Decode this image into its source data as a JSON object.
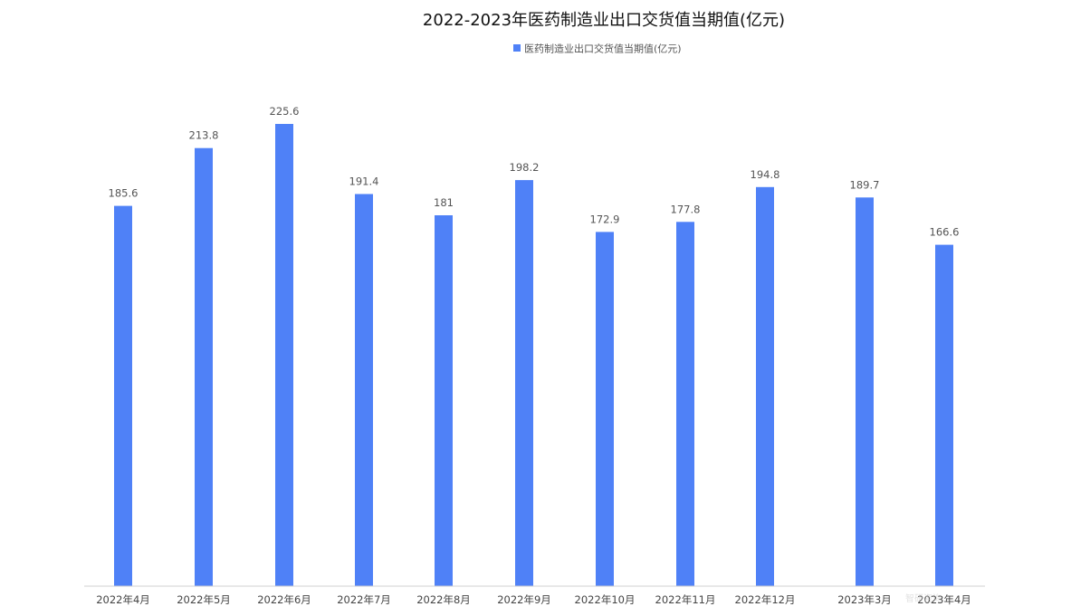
{
  "chart_data": {
    "type": "bar",
    "title": "2022-2023年医药制造业出口交货值当期值(亿元)",
    "legend": {
      "position": "top-center",
      "entries": [
        "医药制造业出口交货值当期值(亿元)"
      ]
    },
    "categories": [
      "2022年4月",
      "2022年5月",
      "2022年6月",
      "2022年7月",
      "2022年8月",
      "2022年9月",
      "2022年10月",
      "2022年11月",
      "2022年12月",
      "2023年3月",
      "2023年4月"
    ],
    "series": [
      {
        "name": "医药制造业出口交货值当期值(亿元)",
        "values": [
          185.6,
          213.8,
          225.6,
          191.4,
          181,
          198.2,
          172.9,
          177.8,
          194.8,
          189.7,
          166.6
        ],
        "color": "#4f81f7",
        "data_labels": [
          "185.6",
          "213.8",
          "225.6",
          "191.4",
          "181",
          "198.2",
          "172.9",
          "177.8",
          "194.8",
          "189.7",
          "166.6"
        ]
      }
    ],
    "ylim": [
      0,
      290
    ],
    "grid": false,
    "y_axis_visible": false,
    "xlabel": "",
    "ylabel": ""
  },
  "colors": {
    "bar": "#4f81f7",
    "axis": "#d0d0d0",
    "title": "#111111",
    "label": "#555555"
  },
  "watermark": {
    "text": "智研咨询"
  }
}
